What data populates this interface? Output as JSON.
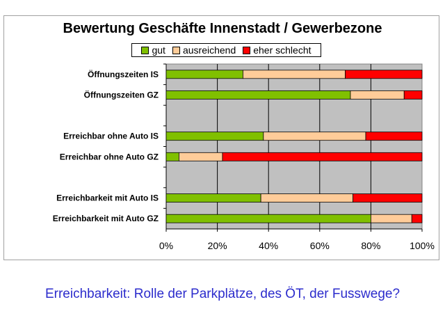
{
  "chart_data": {
    "type": "bar",
    "stacked": "percent",
    "orientation": "horizontal",
    "title": "Bewertung Geschäfte Innenstadt / Gewerbezone",
    "categories": [
      "Öffnungszeiten IS",
      "Öffnungszeiten GZ",
      "",
      "Erreichbar ohne Auto IS",
      "Erreichbar ohne Auto GZ",
      "",
      "Erreichbarkeit mit Auto IS",
      "Erreichbarkeit mit Auto GZ"
    ],
    "series": [
      {
        "name": "gut",
        "color": "#80c000",
        "values": [
          30,
          72,
          null,
          38,
          5,
          null,
          37,
          80
        ]
      },
      {
        "name": "ausreichend",
        "color": "#ffcc99",
        "values": [
          40,
          21,
          null,
          40,
          17,
          null,
          36,
          16
        ]
      },
      {
        "name": "eher schlecht",
        "color": "#ff0000",
        "values": [
          30,
          7,
          null,
          22,
          78,
          null,
          27,
          4
        ]
      }
    ],
    "xlim": [
      0,
      100
    ],
    "x_ticks": [
      "0%",
      "20%",
      "40%",
      "60%",
      "80%",
      "100%"
    ],
    "grid": "vertical",
    "plot_background": "#c0c0c0",
    "legend_position": "top"
  },
  "caption": "Erreichbarkeit: Rolle der Parkplätze, des ÖT, der Fusswege?"
}
